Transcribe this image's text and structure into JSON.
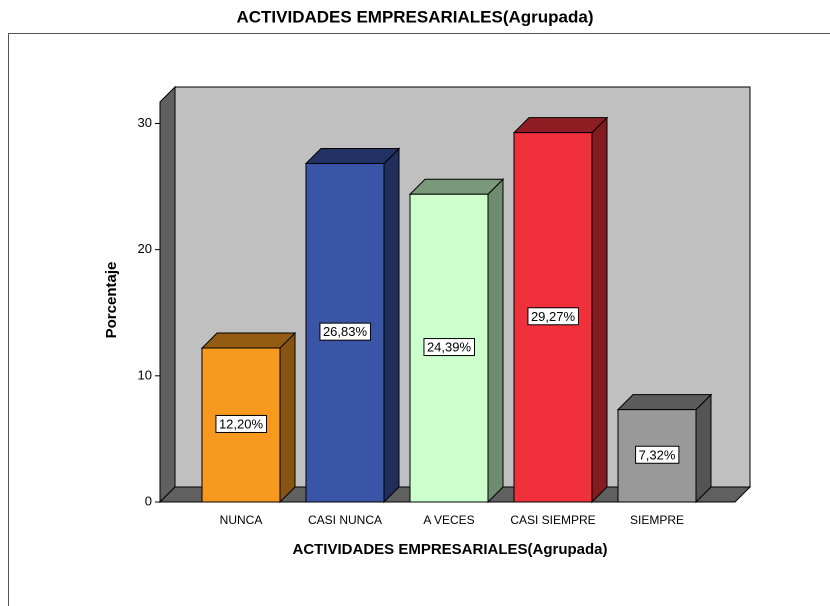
{
  "chart_data": {
    "type": "bar3d",
    "title": "ACTIVIDADES EMPRESARIALES(Agrupada)",
    "x_label": "ACTIVIDADES EMPRESARIALES(Agrupada)",
    "y_label": "Porcentaje",
    "categories": [
      "NUNCA",
      "CASI NUNCA",
      "A VECES",
      "CASI SIEMPRE",
      "SIEMPRE"
    ],
    "values": [
      12.2,
      26.83,
      24.39,
      29.27,
      7.32
    ],
    "value_labels": [
      "12,20%",
      "26,83%",
      "24,39%",
      "29,27%",
      "7,32%"
    ],
    "colors": [
      "#f7981f",
      "#3a54a6",
      "#ccffcc",
      "#f0313b",
      "#999999"
    ],
    "ylim": [
      0,
      31.7
    ],
    "yticks": [
      0,
      10,
      20,
      30
    ]
  }
}
